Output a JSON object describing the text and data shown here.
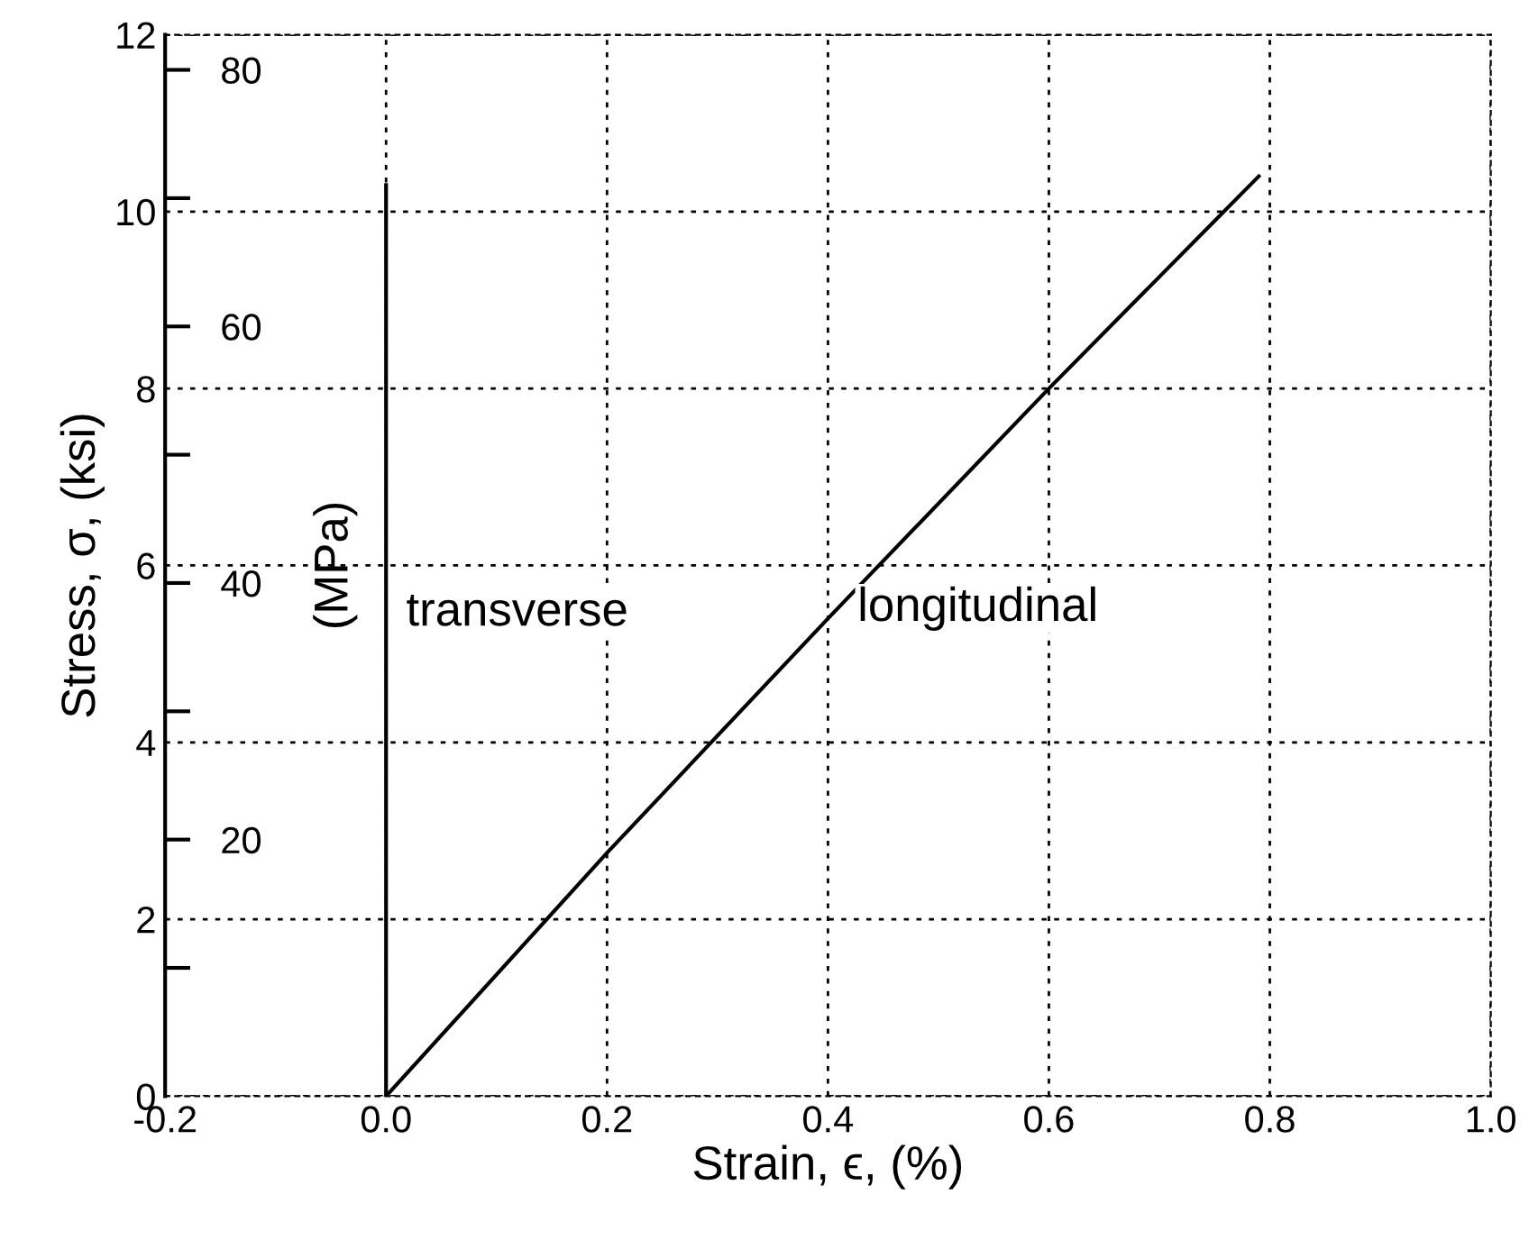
{
  "chart_data": {
    "type": "line",
    "xlabel": "Strain, ϵ, (%)",
    "ylabel": "Stress, σ, (ksi)",
    "y2label": "(MPa)",
    "xlim": [
      -0.2,
      1.0
    ],
    "xticks": [
      {
        "value": -0.2,
        "label": "-0.2"
      },
      {
        "value": 0,
        "label": "0.0"
      },
      0.2,
      0.4,
      0.6,
      0.8,
      {
        "value": 1.0,
        "label": "1.0"
      }
    ],
    "ylim": [
      0,
      12
    ],
    "yticks": [
      0,
      2,
      4,
      6,
      8,
      10,
      12
    ],
    "y2lim": [
      0,
      82.74
    ],
    "y2ticks": [
      {
        "value": 10,
        "label": null
      },
      20,
      {
        "value": 30,
        "label": null
      },
      40,
      {
        "value": 50,
        "label": null
      },
      60,
      {
        "value": 70,
        "label": null
      },
      80
    ],
    "grid": true,
    "line_style": "solid",
    "marker": "none",
    "series": [
      {
        "name": "transverse",
        "color": "#000000",
        "x": [
          0,
          0
        ],
        "values": [
          0,
          10.3
        ]
      },
      {
        "name": "longitudinal",
        "color": "#000000",
        "x": [
          0,
          0.2,
          0.4,
          0.6,
          0.79
        ],
        "values": [
          0,
          2.75,
          5.4,
          8.0,
          10.4
        ]
      }
    ]
  }
}
